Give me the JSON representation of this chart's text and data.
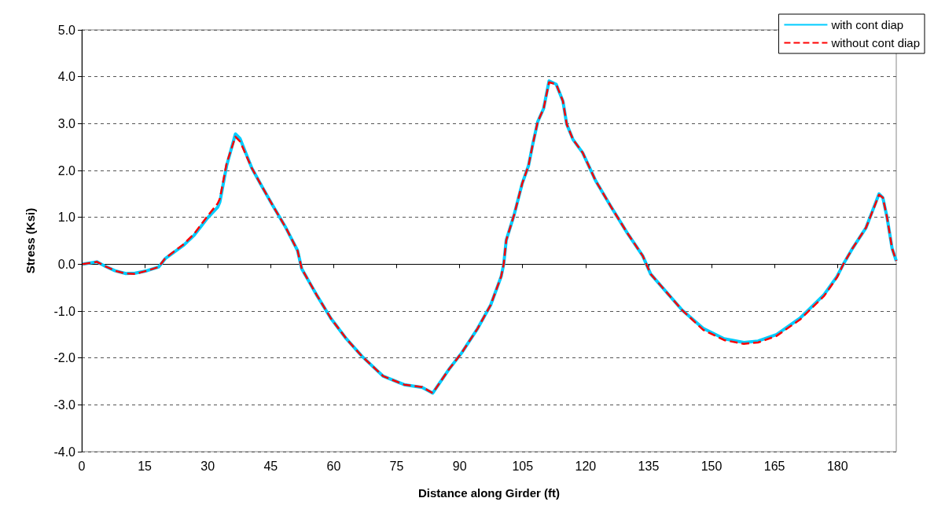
{
  "chart_data": {
    "type": "line",
    "xlabel": "Distance along Girder (ft)",
    "ylabel": "Stress (Ksi)",
    "xlim": [
      0,
      194
    ],
    "xticks": [
      0,
      15,
      30,
      45,
      60,
      75,
      90,
      105,
      120,
      135,
      150,
      165,
      180
    ],
    "ylim": [
      -4,
      5
    ],
    "yticks": [
      {
        "value": -4,
        "label": "-4.0"
      },
      {
        "value": -3,
        "label": "-3.0"
      },
      {
        "value": -2,
        "label": "-2.0"
      },
      {
        "value": -1,
        "label": "-1.0"
      },
      {
        "value": 0,
        "label": "0.0"
      },
      {
        "value": 1,
        "label": "1.0"
      },
      {
        "value": 2,
        "label": "2.0"
      },
      {
        "value": 3,
        "label": "3.0"
      },
      {
        "value": 4,
        "label": "4.0"
      },
      {
        "value": 5,
        "label": "5.0"
      }
    ],
    "grid": "y",
    "legend": "top right",
    "marker": "none",
    "series": [
      {
        "name": "with cont diap",
        "color": "#00ccff",
        "line_style": "solid",
        "x": [
          0.2,
          3.6,
          5.5,
          7.9,
          10.5,
          12.7,
          15.5,
          18.3,
          19.9,
          24.2,
          26.8,
          29.9,
          32.4,
          32.9,
          34.5,
          36.6,
          37.7,
          40.5,
          42.9,
          45.5,
          48.6,
          51.4,
          52.4,
          56.1,
          59.3,
          63,
          66.8,
          71.8,
          76.8,
          81.1,
          83.6,
          87.4,
          90.5,
          94.3,
          97.4,
          99.9,
          100.5,
          101.1,
          103,
          104.9,
          106.4,
          107.4,
          108.6,
          110,
          111.3,
          113,
          114.6,
          115.5,
          117,
          119.3,
          122.4,
          126.1,
          129.9,
          133.6,
          135.5,
          139.3,
          143,
          148,
          153,
          157.7,
          161.1,
          165.5,
          171.1,
          176.8,
          179.9,
          181.4,
          183.6,
          186.8,
          189.9,
          190.8,
          191.8,
          193,
          194
        ],
        "values": [
          0,
          0.05,
          -0.04,
          -0.14,
          -0.2,
          -0.19,
          -0.14,
          -0.06,
          0.12,
          0.4,
          0.62,
          0.98,
          1.22,
          1.33,
          2.1,
          2.78,
          2.68,
          2.05,
          1.66,
          1.25,
          0.78,
          0.29,
          -0.1,
          -0.68,
          -1.15,
          -1.59,
          -1.97,
          -2.39,
          -2.57,
          -2.63,
          -2.75,
          -2.25,
          -1.89,
          -1.37,
          -0.87,
          -0.26,
          0,
          0.51,
          1.06,
          1.72,
          2.1,
          2.55,
          3.04,
          3.32,
          3.91,
          3.84,
          3.48,
          2.99,
          2.66,
          2.38,
          1.78,
          1.22,
          0.67,
          0.18,
          -0.21,
          -0.6,
          -0.98,
          -1.37,
          -1.59,
          -1.67,
          -1.64,
          -1.5,
          -1.15,
          -0.65,
          -0.26,
          0,
          0.34,
          0.78,
          1.5,
          1.42,
          1,
          0.34,
          0.07
        ]
      },
      {
        "name": "without cont diap",
        "color": "#ff0000",
        "line_style": "dashed",
        "x": [
          0.2,
          3.6,
          5.5,
          7.9,
          10.5,
          12.7,
          15.5,
          18.3,
          19.9,
          24.2,
          26.8,
          29.9,
          32.4,
          32.9,
          34.5,
          36.6,
          37.7,
          40.5,
          42.9,
          45.5,
          48.6,
          51.4,
          52.4,
          56.1,
          59.3,
          63,
          66.8,
          71.8,
          76.8,
          81.1,
          83.6,
          87.4,
          90.5,
          94.3,
          97.4,
          99.9,
          100.5,
          101.1,
          103,
          104.9,
          106.4,
          107.4,
          108.6,
          110,
          111.3,
          113,
          114.6,
          115.5,
          117,
          119.3,
          122.4,
          126.1,
          129.9,
          133.6,
          135.5,
          139.3,
          143,
          148,
          153,
          157.7,
          161.1,
          165.5,
          171.1,
          176.8,
          179.9,
          181.4,
          183.6,
          186.8,
          189.9,
          190.8,
          191.8,
          193,
          194
        ],
        "values": [
          0,
          0.05,
          -0.04,
          -0.14,
          -0.2,
          -0.21,
          -0.14,
          -0.06,
          0.13,
          0.42,
          0.65,
          1.02,
          1.3,
          1.4,
          2.15,
          2.72,
          2.62,
          2.05,
          1.66,
          1.25,
          0.78,
          0.29,
          -0.1,
          -0.68,
          -1.15,
          -1.59,
          -1.97,
          -2.39,
          -2.57,
          -2.62,
          -2.75,
          -2.25,
          -1.89,
          -1.37,
          -0.87,
          -0.26,
          0,
          0.51,
          1.06,
          1.72,
          2.1,
          2.55,
          3.04,
          3.32,
          3.88,
          3.84,
          3.48,
          2.99,
          2.66,
          2.38,
          1.78,
          1.22,
          0.67,
          0.18,
          -0.21,
          -0.6,
          -0.98,
          -1.4,
          -1.62,
          -1.7,
          -1.67,
          -1.53,
          -1.18,
          -0.68,
          -0.28,
          0,
          0.34,
          0.78,
          1.48,
          1.42,
          1,
          0.34,
          0.07
        ]
      }
    ]
  }
}
